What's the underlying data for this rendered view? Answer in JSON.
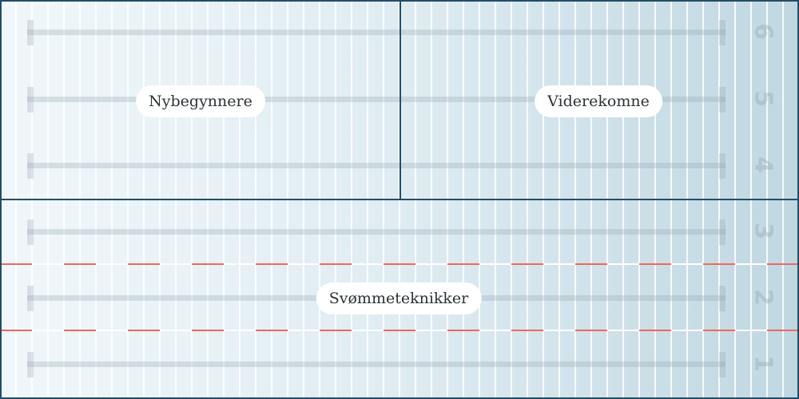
{
  "zones": [
    {
      "label": "Nybegynnere",
      "lanes": [
        4,
        5,
        6
      ]
    },
    {
      "label": "Viderekomne",
      "lanes": [
        4,
        5,
        6
      ]
    },
    {
      "label": "Svømmeteknikker",
      "lanes": [
        1,
        2,
        3
      ]
    }
  ],
  "lanes": [
    "1",
    "2",
    "3",
    "4",
    "5",
    "6"
  ],
  "colors": {
    "border": "#234d66",
    "rope": "#f0675e",
    "water_light": "#f0f7fb",
    "water_dark": "#c0d7e1"
  }
}
